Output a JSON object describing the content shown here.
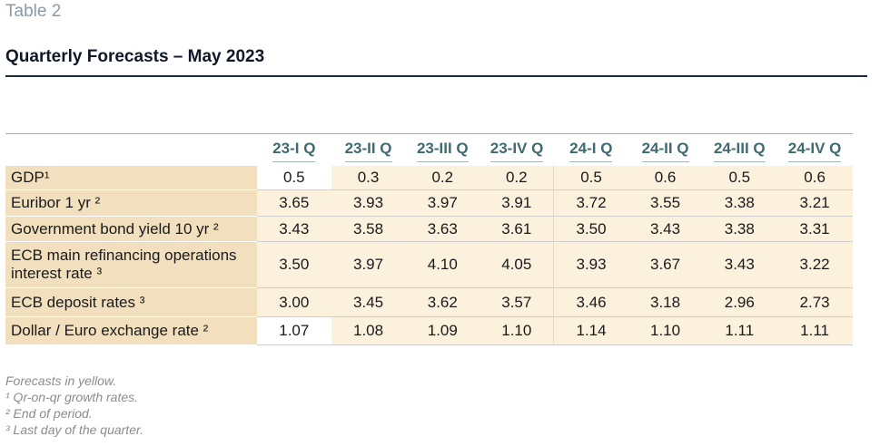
{
  "header": {
    "table_label": "Table 2",
    "title": "Quarterly Forecasts – May 2023"
  },
  "table": {
    "columns": [
      "23-I Q",
      "23-II Q",
      "23-III Q",
      "23-IV Q",
      "24-I Q",
      "24-II Q",
      "24-III Q",
      "24-IV Q"
    ],
    "rows": [
      {
        "label": "GDP¹",
        "values": [
          "0.5",
          "0.3",
          "0.2",
          "0.2",
          "0.5",
          "0.6",
          "0.5",
          "0.6"
        ]
      },
      {
        "label": "Euribor 1 yr ²",
        "values": [
          "3.65",
          "3.93",
          "3.97",
          "3.91",
          "3.72",
          "3.55",
          "3.38",
          "3.21"
        ]
      },
      {
        "label": "Government bond yield 10 yr ²",
        "values": [
          "3.43",
          "3.58",
          "3.63",
          "3.61",
          "3.50",
          "3.43",
          "3.38",
          "3.31"
        ]
      },
      {
        "label": "ECB main refinancing operations interest rate ³",
        "values": [
          "3.50",
          "3.97",
          "4.10",
          "4.05",
          "3.93",
          "3.67",
          "3.43",
          "3.22"
        ]
      },
      {
        "label": "ECB deposit rates ³",
        "values": [
          "3.00",
          "3.45",
          "3.62",
          "3.57",
          "3.46",
          "3.18",
          "2.96",
          "2.73"
        ]
      },
      {
        "label": "Dollar / Euro exchange rate ²",
        "values": [
          "1.07",
          "1.08",
          "1.09",
          "1.10",
          "1.14",
          "1.10",
          "1.11",
          "1.11"
        ]
      }
    ],
    "forecast_color": "#fbf1dc",
    "label_color": "#f2dfbd",
    "header_color": "#3f6a72"
  },
  "footnotes": [
    "Forecasts in yellow.",
    "¹ Qr-on-qr growth rates.",
    "² End of period.",
    "³ Last day of the quarter."
  ]
}
